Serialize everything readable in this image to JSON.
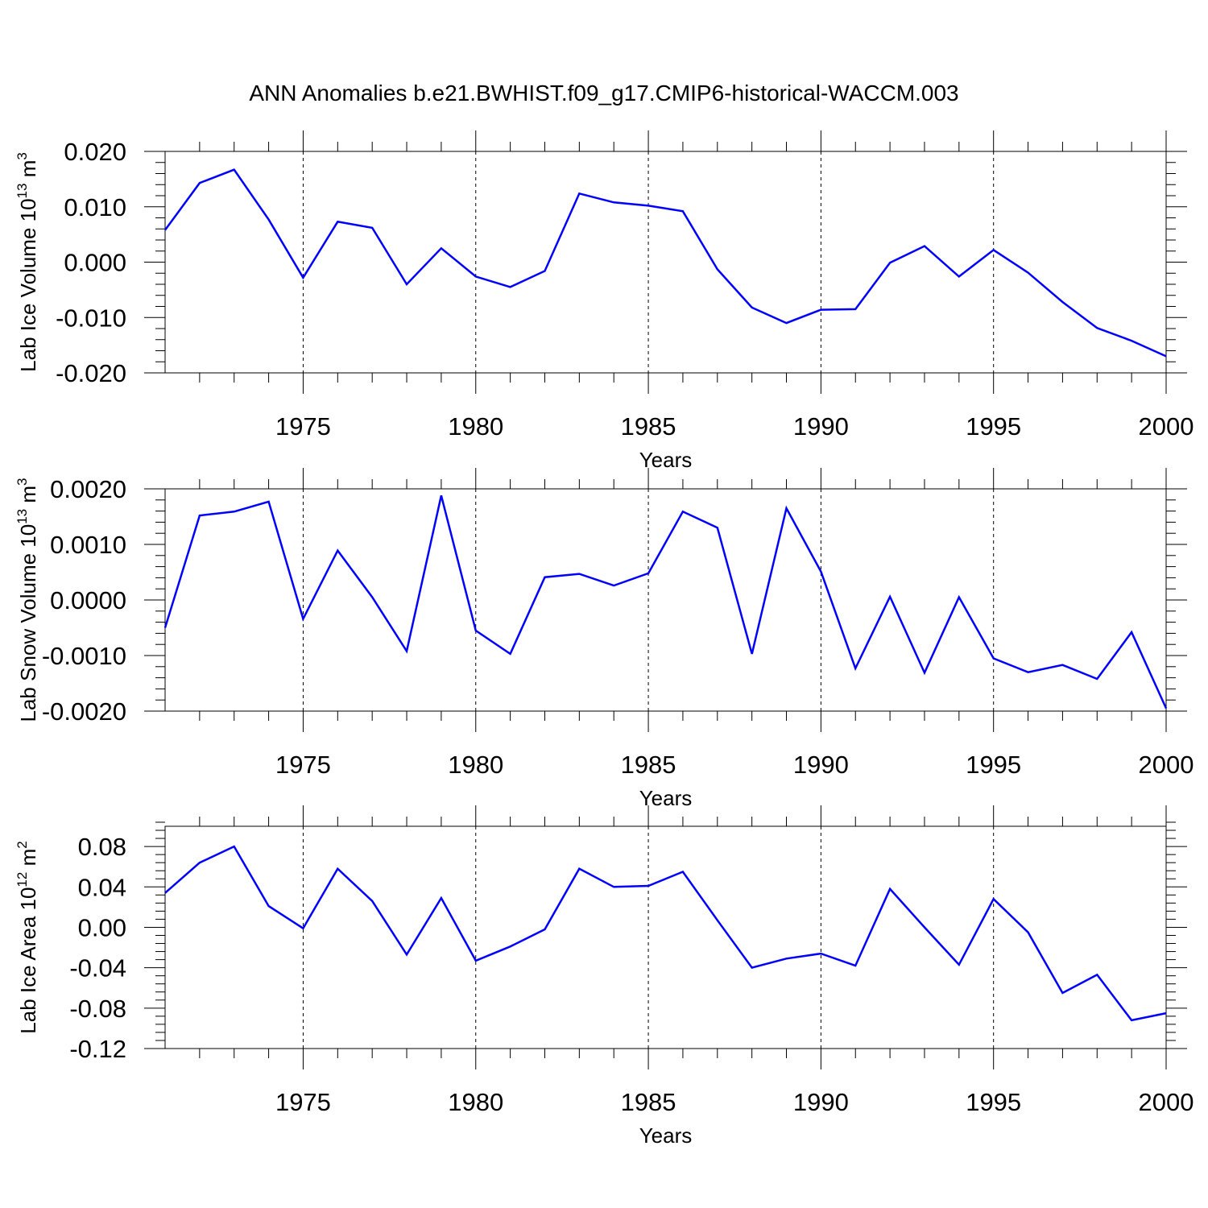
{
  "title": "ANN Anomalies b.e21.BWHIST.f09_g17.CMIP6-historical-WACCM.003",
  "colors": {
    "series": "#0000ff",
    "axis": "#000000",
    "background": "#ffffff"
  },
  "chart_data": [
    {
      "type": "line",
      "title": "",
      "xlabel": "Years",
      "ylabel_base": "Lab Ice Volume 10",
      "ylabel_exp": "13",
      "ylabel_unit": "m",
      "ylabel_unit_exp": "3",
      "xlim": [
        1971,
        2000
      ],
      "ylim": [
        -0.02,
        0.02
      ],
      "xticks": [
        "1975",
        "1980",
        "1985",
        "1990",
        "1995",
        "2000"
      ],
      "yticks": [
        "0.020",
        "0.010",
        "0.000",
        "-0.010",
        "-0.020"
      ],
      "grid": "dashed vertical at major x ticks",
      "x": [
        1971,
        1972,
        1973,
        1974,
        1975,
        1976,
        1977,
        1978,
        1979,
        1980,
        1981,
        1982,
        1983,
        1984,
        1985,
        1986,
        1987,
        1988,
        1989,
        1990,
        1991,
        1992,
        1993,
        1994,
        1995,
        1996,
        1997,
        1998,
        1999,
        2000
      ],
      "values": [
        0.0058,
        0.0143,
        0.0167,
        0.0077,
        -0.0028,
        0.0073,
        0.0062,
        -0.004,
        0.0025,
        -0.0026,
        -0.0045,
        -0.0016,
        0.0124,
        0.0108,
        0.0102,
        0.0092,
        -0.0013,
        -0.0082,
        -0.011,
        -0.0086,
        -0.0085,
        -0.0001,
        0.0029,
        -0.0026,
        0.0022,
        -0.0019,
        -0.0072,
        -0.0119,
        -0.0142,
        -0.017
      ]
    },
    {
      "type": "line",
      "title": "",
      "xlabel": "Years",
      "ylabel_base": "Lab Snow Volume 10",
      "ylabel_exp": "13",
      "ylabel_unit": "m",
      "ylabel_unit_exp": "3",
      "xlim": [
        1971,
        2000
      ],
      "ylim": [
        -0.002,
        0.002
      ],
      "xticks": [
        "1975",
        "1980",
        "1985",
        "1990",
        "1995",
        "2000"
      ],
      "yticks": [
        "0.0020",
        "0.0010",
        "0.0000",
        "-0.0010",
        "-0.0020"
      ],
      "grid": "dashed vertical at major x ticks",
      "x": [
        1971,
        1972,
        1973,
        1974,
        1975,
        1976,
        1977,
        1978,
        1979,
        1980,
        1981,
        1982,
        1983,
        1984,
        1985,
        1986,
        1987,
        1988,
        1989,
        1990,
        1991,
        1992,
        1993,
        1994,
        1995,
        1996,
        1997,
        1998,
        1999,
        2000
      ],
      "values": [
        -0.0005,
        0.00152,
        0.00159,
        0.00177,
        -0.00034,
        0.00089,
        5e-05,
        -0.00092,
        0.00188,
        -0.00055,
        -0.00097,
        0.00041,
        0.00047,
        0.00026,
        0.00048,
        0.00159,
        0.0013,
        -0.00097,
        0.00165,
        0.00051,
        -0.00123,
        6e-05,
        -0.00131,
        5e-05,
        -0.00105,
        -0.0013,
        -0.00117,
        -0.00142,
        -0.00058,
        -0.00195
      ]
    },
    {
      "type": "line",
      "title": "",
      "xlabel": "Years",
      "ylabel_base": "Lab Ice Area 10",
      "ylabel_exp": "12",
      "ylabel_unit": "m",
      "ylabel_unit_exp": "2",
      "xlim": [
        1971,
        2000
      ],
      "ylim": [
        -0.12,
        0.1
      ],
      "xticks": [
        "1975",
        "1980",
        "1985",
        "1990",
        "1995",
        "2000"
      ],
      "yticks": [
        "0.08",
        "0.04",
        "0.00",
        "-0.04",
        "-0.08",
        "-0.12"
      ],
      "grid": "dashed vertical at major x ticks",
      "x": [
        1971,
        1972,
        1973,
        1974,
        1975,
        1976,
        1977,
        1978,
        1979,
        1980,
        1981,
        1982,
        1983,
        1984,
        1985,
        1986,
        1987,
        1988,
        1989,
        1990,
        1991,
        1992,
        1993,
        1994,
        1995,
        1996,
        1997,
        1998,
        1999,
        2000
      ],
      "values": [
        0.034,
        0.064,
        0.08,
        0.021,
        -0.001,
        0.058,
        0.026,
        -0.027,
        0.029,
        -0.033,
        -0.019,
        -0.002,
        0.058,
        0.04,
        0.041,
        0.055,
        0.007,
        -0.04,
        -0.031,
        -0.026,
        -0.038,
        0.038,
        0.0,
        -0.037,
        0.028,
        -0.005,
        -0.065,
        -0.047,
        -0.092,
        -0.085
      ]
    }
  ]
}
